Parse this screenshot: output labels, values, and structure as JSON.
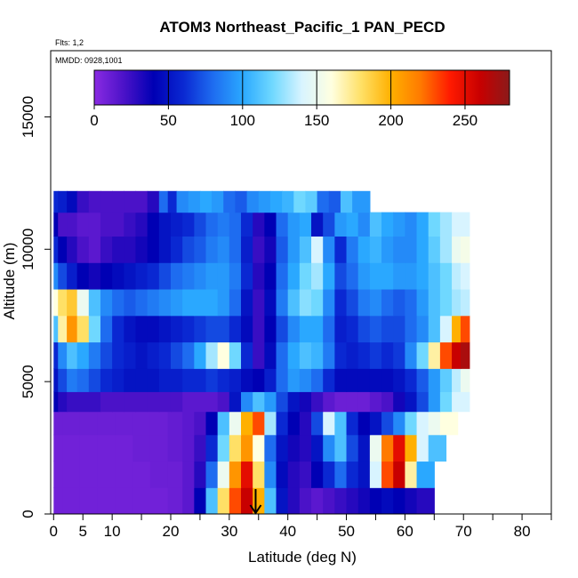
{
  "chart_data": {
    "type": "heatmap",
    "title": "ATOM3 Northeast_Pacific_1 PAN_PECD",
    "flights_note": "Flts: 1,2",
    "date_note": "MMDD: 0928,1001",
    "xlabel": "Latitude (deg N)",
    "ylabel": "Altitude (m)",
    "xlim": [
      -0.5,
      85
    ],
    "ylim": [
      0,
      17500
    ],
    "x_ticks": [
      0,
      5,
      10,
      20,
      30,
      40,
      50,
      60,
      70,
      80
    ],
    "x_minor_ticks": [
      15,
      25,
      35,
      45,
      55,
      65,
      75,
      85
    ],
    "y_ticks": [
      0,
      5000,
      10000,
      15000
    ],
    "colorbar": {
      "range": [
        0,
        280
      ],
      "ticks": [
        0,
        50,
        100,
        150,
        200,
        250
      ],
      "colors": [
        "#8a2be2",
        "#4b12c8",
        "#0000b4",
        "#0a28d2",
        "#1e6cf0",
        "#2aa8ff",
        "#6fd8ff",
        "#d8f4ff",
        "#ffffe0",
        "#ffe066",
        "#ffb000",
        "#ff7a00",
        "#ff1a00",
        "#c80000",
        "#8b1a1a"
      ]
    },
    "grid": false,
    "marker": {
      "type": "arrow-down",
      "x": 34.5,
      "y": 0
    },
    "series": [
      {
        "y": 11800,
        "x": [
          0,
          1.5,
          3,
          5,
          7,
          9,
          11,
          13,
          15,
          17,
          19,
          20,
          22,
          24,
          26,
          28,
          30,
          32,
          34,
          36,
          38,
          40,
          42,
          44,
          46,
          48,
          50,
          52
        ],
        "values": [
          60,
          55,
          45,
          25,
          20,
          20,
          20,
          20,
          20,
          30,
          80,
          60,
          90,
          95,
          100,
          95,
          80,
          75,
          90,
          95,
          100,
          105,
          120,
          115,
          80,
          75,
          110,
          95
        ]
      },
      {
        "y": 11000,
        "x": [
          0,
          1.5,
          3,
          5,
          7,
          9,
          11,
          13,
          15,
          17,
          19,
          21,
          23,
          25,
          27,
          29,
          31,
          33,
          35,
          37,
          39,
          41,
          43,
          45,
          47,
          49,
          51,
          53,
          55,
          57,
          59,
          61,
          63,
          65,
          67,
          69
        ],
        "values": [
          40,
          20,
          20,
          15,
          15,
          20,
          20,
          25,
          30,
          40,
          50,
          55,
          60,
          70,
          80,
          85,
          80,
          60,
          30,
          40,
          80,
          95,
          100,
          50,
          70,
          95,
          100,
          90,
          110,
          100,
          95,
          90,
          100,
          120,
          130,
          140
        ]
      },
      {
        "y": 10000,
        "x": [
          0,
          1.5,
          3,
          5,
          7,
          9,
          11,
          13,
          15,
          17,
          19,
          21,
          23,
          25,
          27,
          29,
          31,
          33,
          35,
          37,
          39,
          41,
          43,
          45,
          47,
          49,
          51,
          53,
          55,
          57,
          59,
          61,
          63,
          65,
          67,
          69,
          70
        ],
        "values": [
          60,
          40,
          30,
          20,
          15,
          25,
          30,
          30,
          35,
          40,
          50,
          60,
          70,
          75,
          85,
          90,
          80,
          55,
          25,
          35,
          75,
          95,
          110,
          140,
          90,
          60,
          85,
          100,
          105,
          95,
          90,
          90,
          100,
          115,
          130,
          150,
          155
        ]
      },
      {
        "y": 9000,
        "x": [
          0,
          1.5,
          3,
          5,
          7,
          9,
          11,
          13,
          15,
          17,
          19,
          21,
          23,
          25,
          27,
          29,
          31,
          33,
          35,
          37,
          39,
          41,
          43,
          45,
          47,
          49,
          51,
          53,
          55,
          57,
          59,
          61,
          63,
          65,
          67,
          69,
          70
        ],
        "values": [
          90,
          70,
          55,
          40,
          35,
          40,
          45,
          50,
          55,
          60,
          70,
          80,
          85,
          90,
          95,
          95,
          85,
          60,
          30,
          40,
          80,
          100,
          120,
          130,
          100,
          70,
          80,
          95,
          100,
          100,
          95,
          95,
          100,
          110,
          120,
          135,
          140
        ]
      },
      {
        "y": 8000,
        "x": [
          0,
          1.5,
          3,
          5,
          7,
          9,
          11,
          13,
          15,
          17,
          19,
          21,
          23,
          25,
          27,
          29,
          31,
          33,
          35,
          37,
          39,
          41,
          43,
          45,
          47,
          49,
          51,
          53,
          55,
          57,
          59,
          61,
          63,
          65,
          67,
          69,
          70
        ],
        "values": [
          160,
          180,
          190,
          150,
          110,
          90,
          80,
          75,
          80,
          85,
          90,
          95,
          100,
          100,
          100,
          95,
          80,
          50,
          25,
          45,
          85,
          110,
          125,
          120,
          90,
          60,
          70,
          85,
          90,
          80,
          75,
          80,
          95,
          110,
          120,
          130,
          135
        ]
      },
      {
        "y": 7000,
        "x": [
          0,
          1.5,
          3,
          5,
          7,
          9,
          11,
          13,
          15,
          17,
          19,
          21,
          23,
          25,
          27,
          29,
          31,
          33,
          35,
          37,
          39,
          41,
          43,
          45,
          47,
          49,
          51,
          53,
          55,
          57,
          59,
          61,
          63,
          65,
          67,
          69,
          70
        ],
        "values": [
          110,
          170,
          210,
          180,
          120,
          80,
          60,
          50,
          45,
          45,
          50,
          55,
          60,
          65,
          70,
          70,
          60,
          45,
          25,
          40,
          70,
          90,
          100,
          100,
          80,
          55,
          60,
          70,
          75,
          70,
          70,
          80,
          90,
          110,
          140,
          200,
          230
        ]
      },
      {
        "y": 6000,
        "x": [
          0,
          1.5,
          3,
          5,
          7,
          9,
          11,
          13,
          15,
          17,
          19,
          21,
          23,
          25,
          27,
          29,
          31,
          33,
          35,
          37,
          39,
          41,
          43,
          45,
          47,
          49,
          51,
          53,
          55,
          57,
          59,
          61,
          63,
          65,
          67,
          69,
          70
        ],
        "values": [
          60,
          90,
          110,
          100,
          85,
          70,
          60,
          55,
          50,
          55,
          60,
          70,
          80,
          100,
          130,
          160,
          120,
          60,
          25,
          45,
          80,
          100,
          110,
          105,
          85,
          60,
          55,
          60,
          65,
          60,
          65,
          90,
          120,
          170,
          230,
          260,
          270
        ]
      },
      {
        "y": 5000,
        "x": [
          0,
          1.5,
          3,
          5,
          7,
          9,
          11,
          13,
          15,
          17,
          19,
          21,
          23,
          25,
          27,
          29,
          31,
          33,
          35,
          37,
          39,
          41,
          43,
          45,
          47,
          49,
          51,
          53,
          55,
          57,
          59,
          61,
          63,
          65,
          67,
          69,
          70
        ],
        "values": [
          50,
          70,
          85,
          80,
          70,
          60,
          55,
          50,
          50,
          50,
          55,
          55,
          60,
          60,
          65,
          60,
          55,
          45,
          40,
          55,
          80,
          95,
          90,
          80,
          60,
          45,
          45,
          45,
          45,
          45,
          50,
          60,
          75,
          95,
          115,
          135,
          150
        ]
      },
      {
        "y": 4250,
        "x": [
          0,
          1.5,
          3,
          5,
          7,
          9,
          11,
          13,
          15,
          17,
          19,
          21,
          23,
          25,
          27,
          29,
          31,
          33,
          35,
          37,
          39,
          41,
          43,
          45,
          47,
          49,
          51,
          53,
          55,
          57,
          59,
          61,
          63,
          65,
          67,
          69
        ],
        "values": [
          40,
          30,
          25,
          25,
          25,
          20,
          20,
          20,
          20,
          20,
          20,
          20,
          15,
          15,
          15,
          20,
          50,
          90,
          110,
          95,
          70,
          50,
          35,
          25,
          15,
          10,
          10,
          10,
          15,
          20,
          35,
          50,
          70,
          95,
          120,
          140
        ]
      },
      {
        "y": 3500,
        "x": [
          0,
          3,
          6,
          9,
          12,
          15,
          18,
          21,
          23,
          25,
          27,
          29,
          31,
          33,
          35,
          37,
          39,
          41,
          43,
          45,
          47,
          49,
          51,
          53,
          55,
          57,
          59,
          61,
          63,
          65,
          67
        ],
        "values": [
          10,
          10,
          10,
          10,
          10,
          10,
          10,
          12,
          15,
          20,
          40,
          110,
          150,
          200,
          230,
          130,
          60,
          40,
          30,
          70,
          140,
          110,
          60,
          40,
          50,
          70,
          90,
          120,
          140,
          150,
          160
        ]
      },
      {
        "y": 2500,
        "x": [
          0,
          3,
          6,
          9,
          12,
          15,
          18,
          21,
          23,
          25,
          27,
          29,
          31,
          33,
          35,
          37,
          39,
          41,
          43,
          45,
          47,
          49,
          51,
          53,
          55,
          57,
          59,
          61,
          63,
          65
        ],
        "values": [
          8,
          8,
          8,
          8,
          8,
          10,
          10,
          12,
          15,
          25,
          60,
          120,
          180,
          210,
          160,
          80,
          50,
          35,
          30,
          50,
          90,
          110,
          70,
          50,
          150,
          220,
          250,
          200,
          140,
          110
        ]
      },
      {
        "y": 1500,
        "x": [
          0,
          3,
          6,
          9,
          12,
          15,
          18,
          21,
          23,
          25,
          27,
          29,
          31,
          33,
          35,
          37,
          39,
          41,
          43,
          45,
          47,
          49,
          51,
          53,
          55,
          57,
          59,
          61,
          63
        ],
        "values": [
          8,
          8,
          8,
          8,
          8,
          8,
          10,
          10,
          15,
          30,
          80,
          150,
          210,
          250,
          180,
          90,
          45,
          30,
          25,
          40,
          60,
          80,
          60,
          50,
          140,
          230,
          260,
          170,
          100
        ]
      },
      {
        "y": 500,
        "x": [
          0,
          3,
          6,
          9,
          12,
          15,
          18,
          21,
          23,
          25,
          27,
          29,
          31,
          33,
          35,
          37,
          39,
          41,
          43,
          45,
          47,
          49,
          51,
          53,
          55,
          57,
          59,
          61,
          63
        ],
        "values": [
          8,
          8,
          8,
          8,
          8,
          8,
          8,
          10,
          15,
          40,
          110,
          180,
          230,
          260,
          200,
          110,
          50,
          30,
          20,
          15,
          20,
          25,
          30,
          35,
          40,
          45,
          40,
          35,
          30
        ]
      }
    ]
  }
}
